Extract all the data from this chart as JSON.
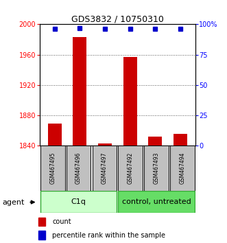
{
  "title": "GDS3832 / 10750310",
  "categories": [
    "GSM467495",
    "GSM467496",
    "GSM467497",
    "GSM467492",
    "GSM467493",
    "GSM467494"
  ],
  "count_values": [
    1869,
    1983,
    1843,
    1957,
    1852,
    1856
  ],
  "percentile_values": [
    96,
    97,
    96,
    96,
    96,
    96
  ],
  "ylim_left": [
    1840,
    2000
  ],
  "ylim_right": [
    0,
    100
  ],
  "yticks_left": [
    1840,
    1880,
    1920,
    1960,
    2000
  ],
  "yticks_right": [
    0,
    25,
    50,
    75,
    100
  ],
  "yticks_right_labels": [
    "0",
    "25",
    "50",
    "75",
    "100%"
  ],
  "bar_color": "#cc0000",
  "dot_color": "#0000cc",
  "group1_label": "C1q",
  "group2_label": "control, untreated",
  "agent_label": "agent",
  "legend_count_label": "count",
  "legend_pct_label": "percentile rank within the sample",
  "group1_color": "#ccffcc",
  "group2_color": "#66dd66",
  "group_border_color": "#33aa33",
  "bar_gray": "#c0c0c0",
  "left_tick_color": "red",
  "right_tick_color": "blue",
  "grid_color": "#555555",
  "title_fontsize": 9,
  "tick_fontsize": 7,
  "label_fontsize": 5.5,
  "group_fontsize": 8,
  "legend_fontsize": 7,
  "agent_fontsize": 8
}
